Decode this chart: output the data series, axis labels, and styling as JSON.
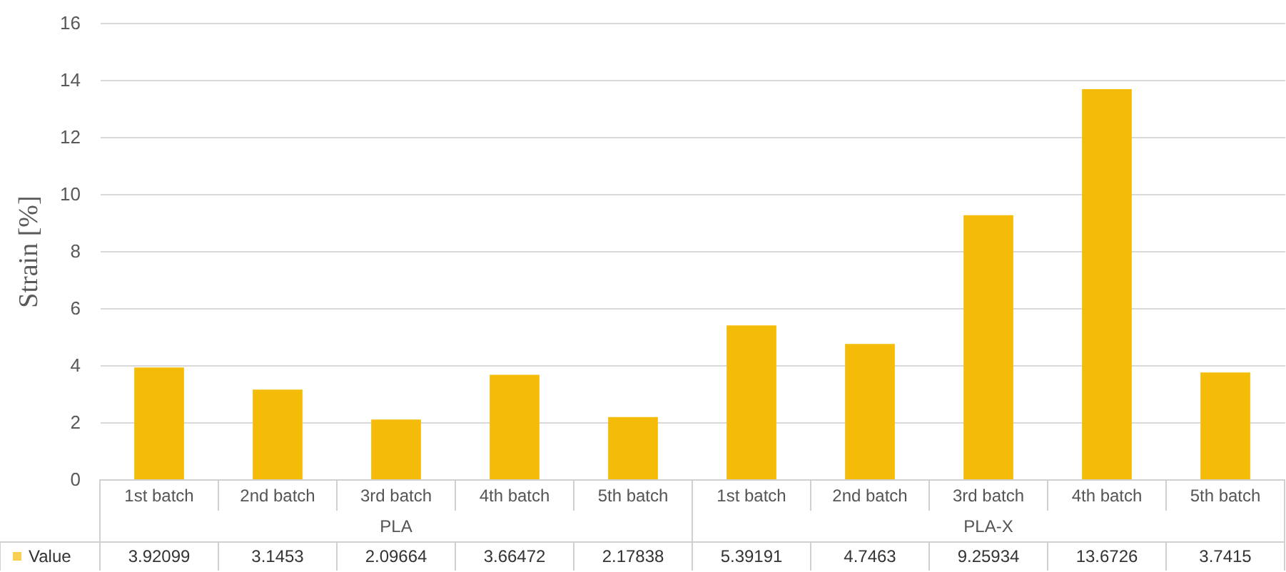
{
  "chart_data": {
    "type": "bar",
    "ylabel": "Strain [%]",
    "categories": [
      "1st batch",
      "2nd batch",
      "3rd batch",
      "4th batch",
      "5th batch",
      "1st batch",
      "2nd batch",
      "3rd batch",
      "4th batch",
      "5th batch"
    ],
    "series": [
      {
        "name": "Value",
        "color": "#f4bc08",
        "values": [
          3.92099,
          3.1453,
          2.09664,
          3.66472,
          2.17838,
          5.39191,
          4.7463,
          9.25934,
          13.6726,
          3.7415
        ]
      }
    ],
    "annotations": [
      "PLA",
      "PLA-X"
    ],
    "ylim": [
      0,
      16
    ],
    "yticks": [
      0,
      2,
      4,
      6,
      8,
      10,
      12,
      14,
      16
    ],
    "grid": "y",
    "data_labels": true,
    "legend": "bottom"
  }
}
